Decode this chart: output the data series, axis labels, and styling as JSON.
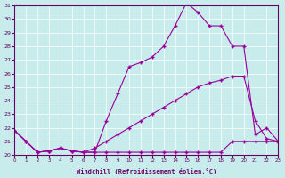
{
  "xlabel": "Windchill (Refroidissement éolien,°C)",
  "xlim": [
    0,
    23
  ],
  "ylim": [
    20,
    31
  ],
  "yticks": [
    20,
    21,
    22,
    23,
    24,
    25,
    26,
    27,
    28,
    29,
    30,
    31
  ],
  "xticks": [
    0,
    1,
    2,
    3,
    4,
    5,
    6,
    7,
    8,
    9,
    10,
    11,
    12,
    13,
    14,
    15,
    16,
    17,
    18,
    19,
    20,
    21,
    22,
    23
  ],
  "bg_color": "#c8ecec",
  "grid_color": "#ffffff",
  "line_color": "#990099",
  "line1_x": [
    0,
    1,
    2,
    3,
    4,
    5,
    6,
    7,
    8,
    9,
    10,
    11,
    12,
    13,
    14,
    15,
    16,
    17,
    18,
    19,
    20,
    21,
    22,
    23
  ],
  "line1_y": [
    21.8,
    21.0,
    20.2,
    20.3,
    20.5,
    20.3,
    20.2,
    20.2,
    20.2,
    20.2,
    20.2,
    20.2,
    20.2,
    20.2,
    20.2,
    20.2,
    20.2,
    20.2,
    20.2,
    21.0,
    21.0,
    21.0,
    21.0,
    21.0
  ],
  "line2_x": [
    0,
    1,
    2,
    3,
    4,
    5,
    6,
    7,
    8,
    9,
    10,
    11,
    12,
    13,
    14,
    15,
    16,
    17,
    18,
    19,
    20,
    21,
    22,
    23
  ],
  "line2_y": [
    21.8,
    21.0,
    20.2,
    20.3,
    20.5,
    20.3,
    20.2,
    20.5,
    21.0,
    21.5,
    22.0,
    22.5,
    23.0,
    23.5,
    24.0,
    24.5,
    25.0,
    25.3,
    25.5,
    25.8,
    25.8,
    22.5,
    21.2,
    21.0
  ],
  "line3_x": [
    0,
    1,
    2,
    3,
    4,
    5,
    6,
    7,
    8,
    9,
    10,
    11,
    12,
    13,
    14,
    15,
    16,
    17,
    18,
    19,
    20,
    21,
    22,
    23
  ],
  "line3_y": [
    21.8,
    21.0,
    20.2,
    20.3,
    20.5,
    20.3,
    20.2,
    20.2,
    22.5,
    24.5,
    26.5,
    26.8,
    27.2,
    28.0,
    29.5,
    31.2,
    30.5,
    29.5,
    29.5,
    28.0,
    28.0,
    21.5,
    22.0,
    21.0
  ]
}
